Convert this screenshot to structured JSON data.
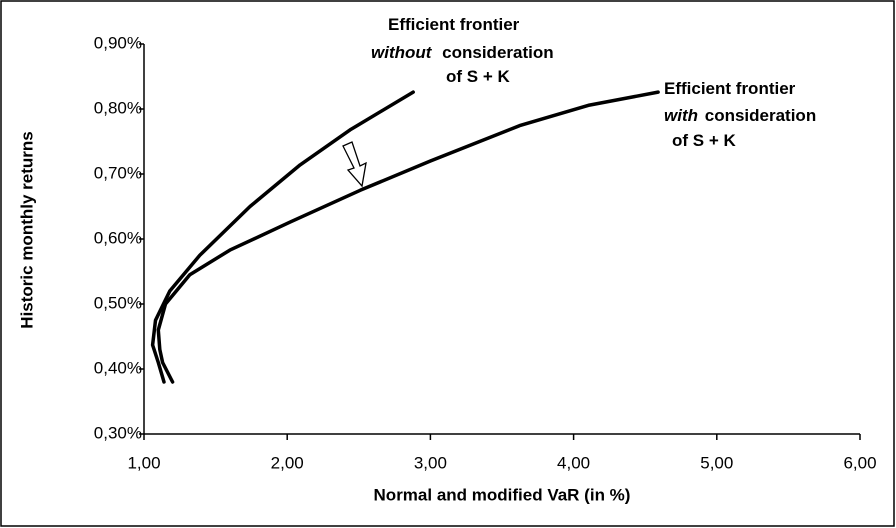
{
  "chart_data": {
    "type": "line",
    "xlabel": "Normal and modified VaR (in %)",
    "ylabel": "Historic monthly returns",
    "x": [],
    "series": [
      {
        "color": "#000000",
        "x": [
          1.14,
          1.1,
          1.06,
          1.08,
          1.18,
          1.39,
          1.74,
          2.09,
          2.44,
          2.88
        ],
        "values": [
          0.38,
          0.41,
          0.437,
          0.475,
          0.52,
          0.575,
          0.65,
          0.714,
          0.768,
          0.826
        ]
      },
      {
        "color": "#000000",
        "x": [
          1.2,
          1.13,
          1.11,
          1.1,
          1.15,
          1.32,
          1.6,
          2.02,
          2.51,
          3.0,
          3.63,
          4.11,
          4.59
        ],
        "values": [
          0.38,
          0.41,
          0.43,
          0.46,
          0.5,
          0.545,
          0.583,
          0.626,
          0.675,
          0.72,
          0.775,
          0.806,
          0.826
        ]
      }
    ],
    "annotations": [
      {
        "lines": [
          "Efficient frontier",
          "without",
          "consideration",
          "of S + K"
        ]
      },
      {
        "lines": [
          "Efficient frontier",
          "with",
          "consideration",
          "of S + K"
        ]
      }
    ],
    "xlim": [
      1,
      6
    ],
    "xticks": [
      {
        "value": 1,
        "label": "1,00"
      },
      {
        "value": 2,
        "label": "2,00"
      },
      {
        "value": 3,
        "label": "3,00"
      },
      {
        "value": 4,
        "label": "4,00"
      },
      {
        "value": 5,
        "label": "5,00"
      },
      {
        "value": 6,
        "label": "6,00"
      }
    ],
    "ylim": [
      0.3,
      0.9
    ],
    "yticks": [
      {
        "value": 0.3,
        "label": "0,30%"
      },
      {
        "value": 0.4,
        "label": "0,40%"
      },
      {
        "value": 0.5,
        "label": "0,50%"
      },
      {
        "value": 0.6,
        "label": "0,60%"
      },
      {
        "value": 0.7,
        "label": "0,70%"
      },
      {
        "value": 0.8,
        "label": "0,80%"
      },
      {
        "value": 0.9,
        "label": "0,90%"
      }
    ],
    "grid": false
  }
}
